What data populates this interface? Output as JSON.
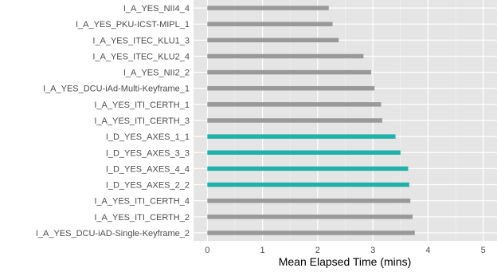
{
  "chart_data": {
    "type": "bar",
    "orientation": "horizontal",
    "xlabel": "Mean Elapsed Time (mins)",
    "ylabel": "",
    "xlim": [
      -0.25,
      5.25
    ],
    "xticks": [
      0,
      1,
      2,
      3,
      4,
      5
    ],
    "grid": true,
    "legend": "none",
    "colors": {
      "panel": "#e5e5e5",
      "grid_major": "#ffffff",
      "grid_minor": "#f2f2f2",
      "bar_default": "#999999",
      "bar_highlight": "#20b2aa"
    },
    "categories": [
      "I_A_YES_DCU-iAD-Single-Keyframe_2",
      "I_A_YES_ITI_CERTH_2",
      "I_A_YES_ITI_CERTH_4",
      "I_D_YES_AXES_2_2",
      "I_D_YES_AXES_4_4",
      "I_D_YES_AXES_3_3",
      "I_D_YES_AXES_1_1",
      "I_A_YES_ITI_CERTH_3",
      "I_A_YES_ITI_CERTH_1",
      "I_A_YES_DCU-iAd-Multi-Keyframe_1",
      "I_A_YES_NII2_2",
      "I_A_YES_ITEC_KLU2_4",
      "I_A_YES_ITEC_KLU1_3",
      "I_A_YES_PKU-ICST-MIPL_1",
      "I_A_YES_NII4_4"
    ],
    "values": [
      3.76,
      3.72,
      3.68,
      3.66,
      3.64,
      3.5,
      3.41,
      3.17,
      3.15,
      3.03,
      2.97,
      2.83,
      2.38,
      2.27,
      2.2
    ],
    "highlight": [
      false,
      false,
      false,
      true,
      true,
      true,
      true,
      false,
      false,
      false,
      false,
      false,
      false,
      false,
      false
    ]
  }
}
